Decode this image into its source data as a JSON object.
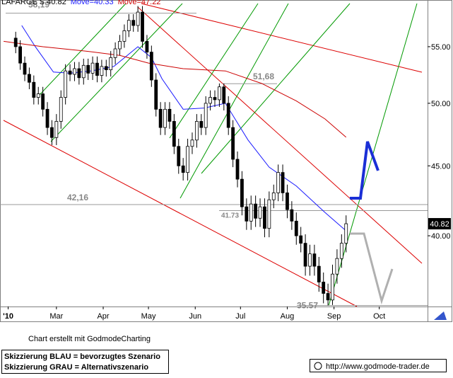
{
  "chart_data": {
    "type": "candlestick",
    "header": [
      {
        "text": "LAFARGE S  40.82",
        "color": "#000000"
      },
      {
        "text": "Move=40.33",
        "color": "#1a1aff"
      },
      {
        "text": "Move=47.22",
        "color": "#cc0000"
      }
    ],
    "x": [
      33,
      36,
      39,
      42,
      45,
      48,
      51,
      54,
      57,
      60,
      63,
      66,
      69,
      72,
      75,
      78,
      81,
      84,
      87,
      90,
      93,
      96,
      99,
      102,
      105,
      108,
      111,
      114,
      117,
      120,
      123,
      126,
      129,
      132,
      135,
      138,
      141,
      144,
      147,
      150,
      153,
      156,
      159,
      162,
      165,
      168,
      171,
      174,
      177,
      180,
      183,
      186,
      189,
      192,
      195,
      198,
      201,
      204,
      207,
      210,
      213,
      216,
      219,
      222,
      225,
      228,
      231,
      234,
      237,
      240,
      243,
      246,
      249,
      252
    ],
    "open": [
      55.8,
      55.0,
      53.5,
      52.5,
      51.8,
      50.5,
      50.8,
      49.5,
      48.0,
      47.2,
      48.5,
      50.5,
      52.8,
      52.5,
      53.0,
      52.2,
      53.3,
      52.6,
      53.5,
      52.4,
      53.2,
      52.9,
      54.0,
      54.8,
      55.5,
      56.5,
      57.5,
      57.0,
      58.3,
      55.5,
      54.5,
      52.0,
      49.5,
      48.0,
      49.5,
      48.5,
      46.5,
      45.0,
      44.5,
      46.5,
      47.0,
      48.5,
      48.0,
      50.0,
      50.5,
      50.3,
      51.4,
      50.0,
      48.0,
      45.5,
      44.0,
      42.0,
      41.0,
      42.2,
      41.2,
      42.0,
      40.5,
      42.5,
      43.0,
      44.5,
      43.0,
      41.8,
      41.0,
      40.0,
      39.5,
      38.0,
      38.8,
      38.0,
      37.0,
      36.3,
      35.9,
      37.5,
      38.5,
      39.5
    ],
    "high": [
      56.4,
      55.6,
      54.1,
      53.1,
      52.4,
      51.4,
      51.4,
      50.1,
      48.6,
      49.1,
      51.1,
      53.4,
      53.4,
      53.6,
      53.6,
      53.9,
      53.9,
      54.1,
      54.1,
      53.8,
      53.8,
      54.6,
      55.4,
      56.1,
      57.1,
      58.1,
      58.1,
      58.9,
      58.9,
      56.1,
      55.1,
      52.6,
      50.1,
      50.1,
      50.1,
      49.1,
      47.1,
      45.6,
      47.1,
      47.6,
      49.1,
      49.1,
      50.6,
      51.1,
      51.1,
      51.7,
      51.7,
      50.6,
      48.6,
      46.1,
      44.6,
      42.6,
      42.8,
      42.8,
      42.6,
      42.6,
      43.1,
      43.6,
      45.1,
      45.1,
      43.6,
      42.4,
      41.6,
      40.6,
      40.1,
      39.4,
      39.4,
      38.6,
      37.6,
      36.9,
      38.1,
      39.1,
      40.1,
      41.4
    ],
    "low": [
      54.4,
      52.9,
      51.9,
      51.2,
      49.9,
      49.9,
      48.9,
      47.4,
      46.6,
      46.6,
      47.9,
      49.9,
      51.9,
      51.9,
      51.6,
      51.6,
      52.0,
      52.0,
      51.8,
      51.8,
      52.3,
      52.3,
      53.4,
      54.2,
      54.9,
      55.9,
      56.4,
      56.4,
      54.9,
      53.9,
      51.4,
      48.9,
      47.4,
      47.4,
      47.9,
      45.9,
      44.4,
      43.9,
      43.9,
      45.9,
      46.4,
      47.4,
      47.4,
      49.4,
      49.7,
      49.7,
      49.4,
      47.4,
      44.9,
      43.4,
      41.4,
      40.4,
      40.4,
      40.6,
      40.6,
      39.9,
      39.9,
      41.9,
      42.4,
      42.4,
      41.2,
      40.4,
      39.4,
      38.9,
      37.4,
      37.4,
      37.4,
      36.4,
      35.7,
      35.57,
      35.6,
      36.9,
      37.9,
      38.9
    ],
    "close": [
      55.0,
      53.5,
      52.5,
      51.8,
      50.5,
      50.8,
      49.5,
      48.0,
      47.2,
      48.5,
      50.5,
      52.8,
      52.5,
      53.0,
      52.2,
      53.3,
      52.6,
      53.5,
      52.4,
      53.2,
      52.9,
      54.0,
      54.8,
      55.5,
      56.5,
      57.5,
      57.0,
      58.3,
      55.5,
      54.5,
      52.0,
      49.5,
      48.0,
      49.5,
      48.5,
      46.5,
      45.0,
      44.5,
      46.5,
      47.0,
      48.5,
      48.0,
      50.0,
      50.5,
      50.3,
      51.4,
      50.0,
      48.0,
      45.5,
      44.0,
      42.0,
      41.0,
      42.2,
      41.2,
      42.0,
      40.5,
      42.5,
      43.0,
      44.5,
      43.0,
      41.8,
      41.0,
      40.0,
      39.5,
      38.0,
      38.8,
      38.0,
      37.0,
      36.3,
      35.9,
      37.5,
      38.5,
      39.5,
      40.82
    ],
    "moving_averages": [
      {
        "color": "#1a1aff",
        "x": [
          37,
          46,
          58,
          69,
          83,
          98,
          114,
          123,
          130,
          144,
          158,
          172,
          187,
          201,
          219,
          238,
          252
        ],
        "values": [
          57.0,
          55.0,
          52.7,
          52.6,
          52.8,
          53.2,
          55.0,
          54.0,
          52.1,
          49.5,
          49.6,
          50.0,
          47.0,
          44.9,
          43.5,
          41.6,
          40.33
        ]
      },
      {
        "color": "#cc0000",
        "x": [
          25,
          51,
          79,
          102,
          121,
          144,
          172,
          196,
          219,
          238,
          252
        ],
        "values": [
          55.5,
          55.0,
          54.6,
          54.2,
          53.5,
          53.0,
          52.8,
          51.7,
          50.2,
          48.7,
          47.22
        ]
      }
    ],
    "annotations": [
      {
        "label": "58,19",
        "value": 58.19
      },
      {
        "label": "51,68",
        "value": 51.68
      },
      {
        "label": "42,16",
        "value": 42.16
      },
      {
        "label": "41.73",
        "value": 41.73
      },
      {
        "label": "35.57",
        "value": 35.57
      }
    ],
    "last_label": "40.82",
    "last_value": 40.82,
    "xlim": [
      24,
      306
    ],
    "xticks": [
      {
        "value": 28,
        "label": "'10"
      },
      {
        "value": 60,
        "label": "Mar"
      },
      {
        "value": 91,
        "label": "Apr"
      },
      {
        "value": 121,
        "label": "May"
      },
      {
        "value": 152,
        "label": "Jun"
      },
      {
        "value": 182,
        "label": "Jul"
      },
      {
        "value": 213,
        "label": "Aug"
      },
      {
        "value": 244,
        "label": "Sep"
      },
      {
        "value": 274,
        "label": "Oct"
      }
    ],
    "ylim": [
      35.55,
      59.5
    ],
    "log_scale": true,
    "yticks": [
      {
        "value": 40,
        "label": "40.00"
      },
      {
        "value": 45,
        "label": "45.00"
      },
      {
        "value": 50,
        "label": "50.00"
      },
      {
        "value": 55,
        "label": "55.00"
      }
    ],
    "footer": {
      "credit": "Chart erstellt mit GodmodeCharting",
      "note_blue": "Skizzierung BLAU = bevorzugtes Szenario",
      "note_gray": "Skizzierung GRAU = Alternativszenario",
      "url": "http://www.godmode-trader.de"
    }
  }
}
